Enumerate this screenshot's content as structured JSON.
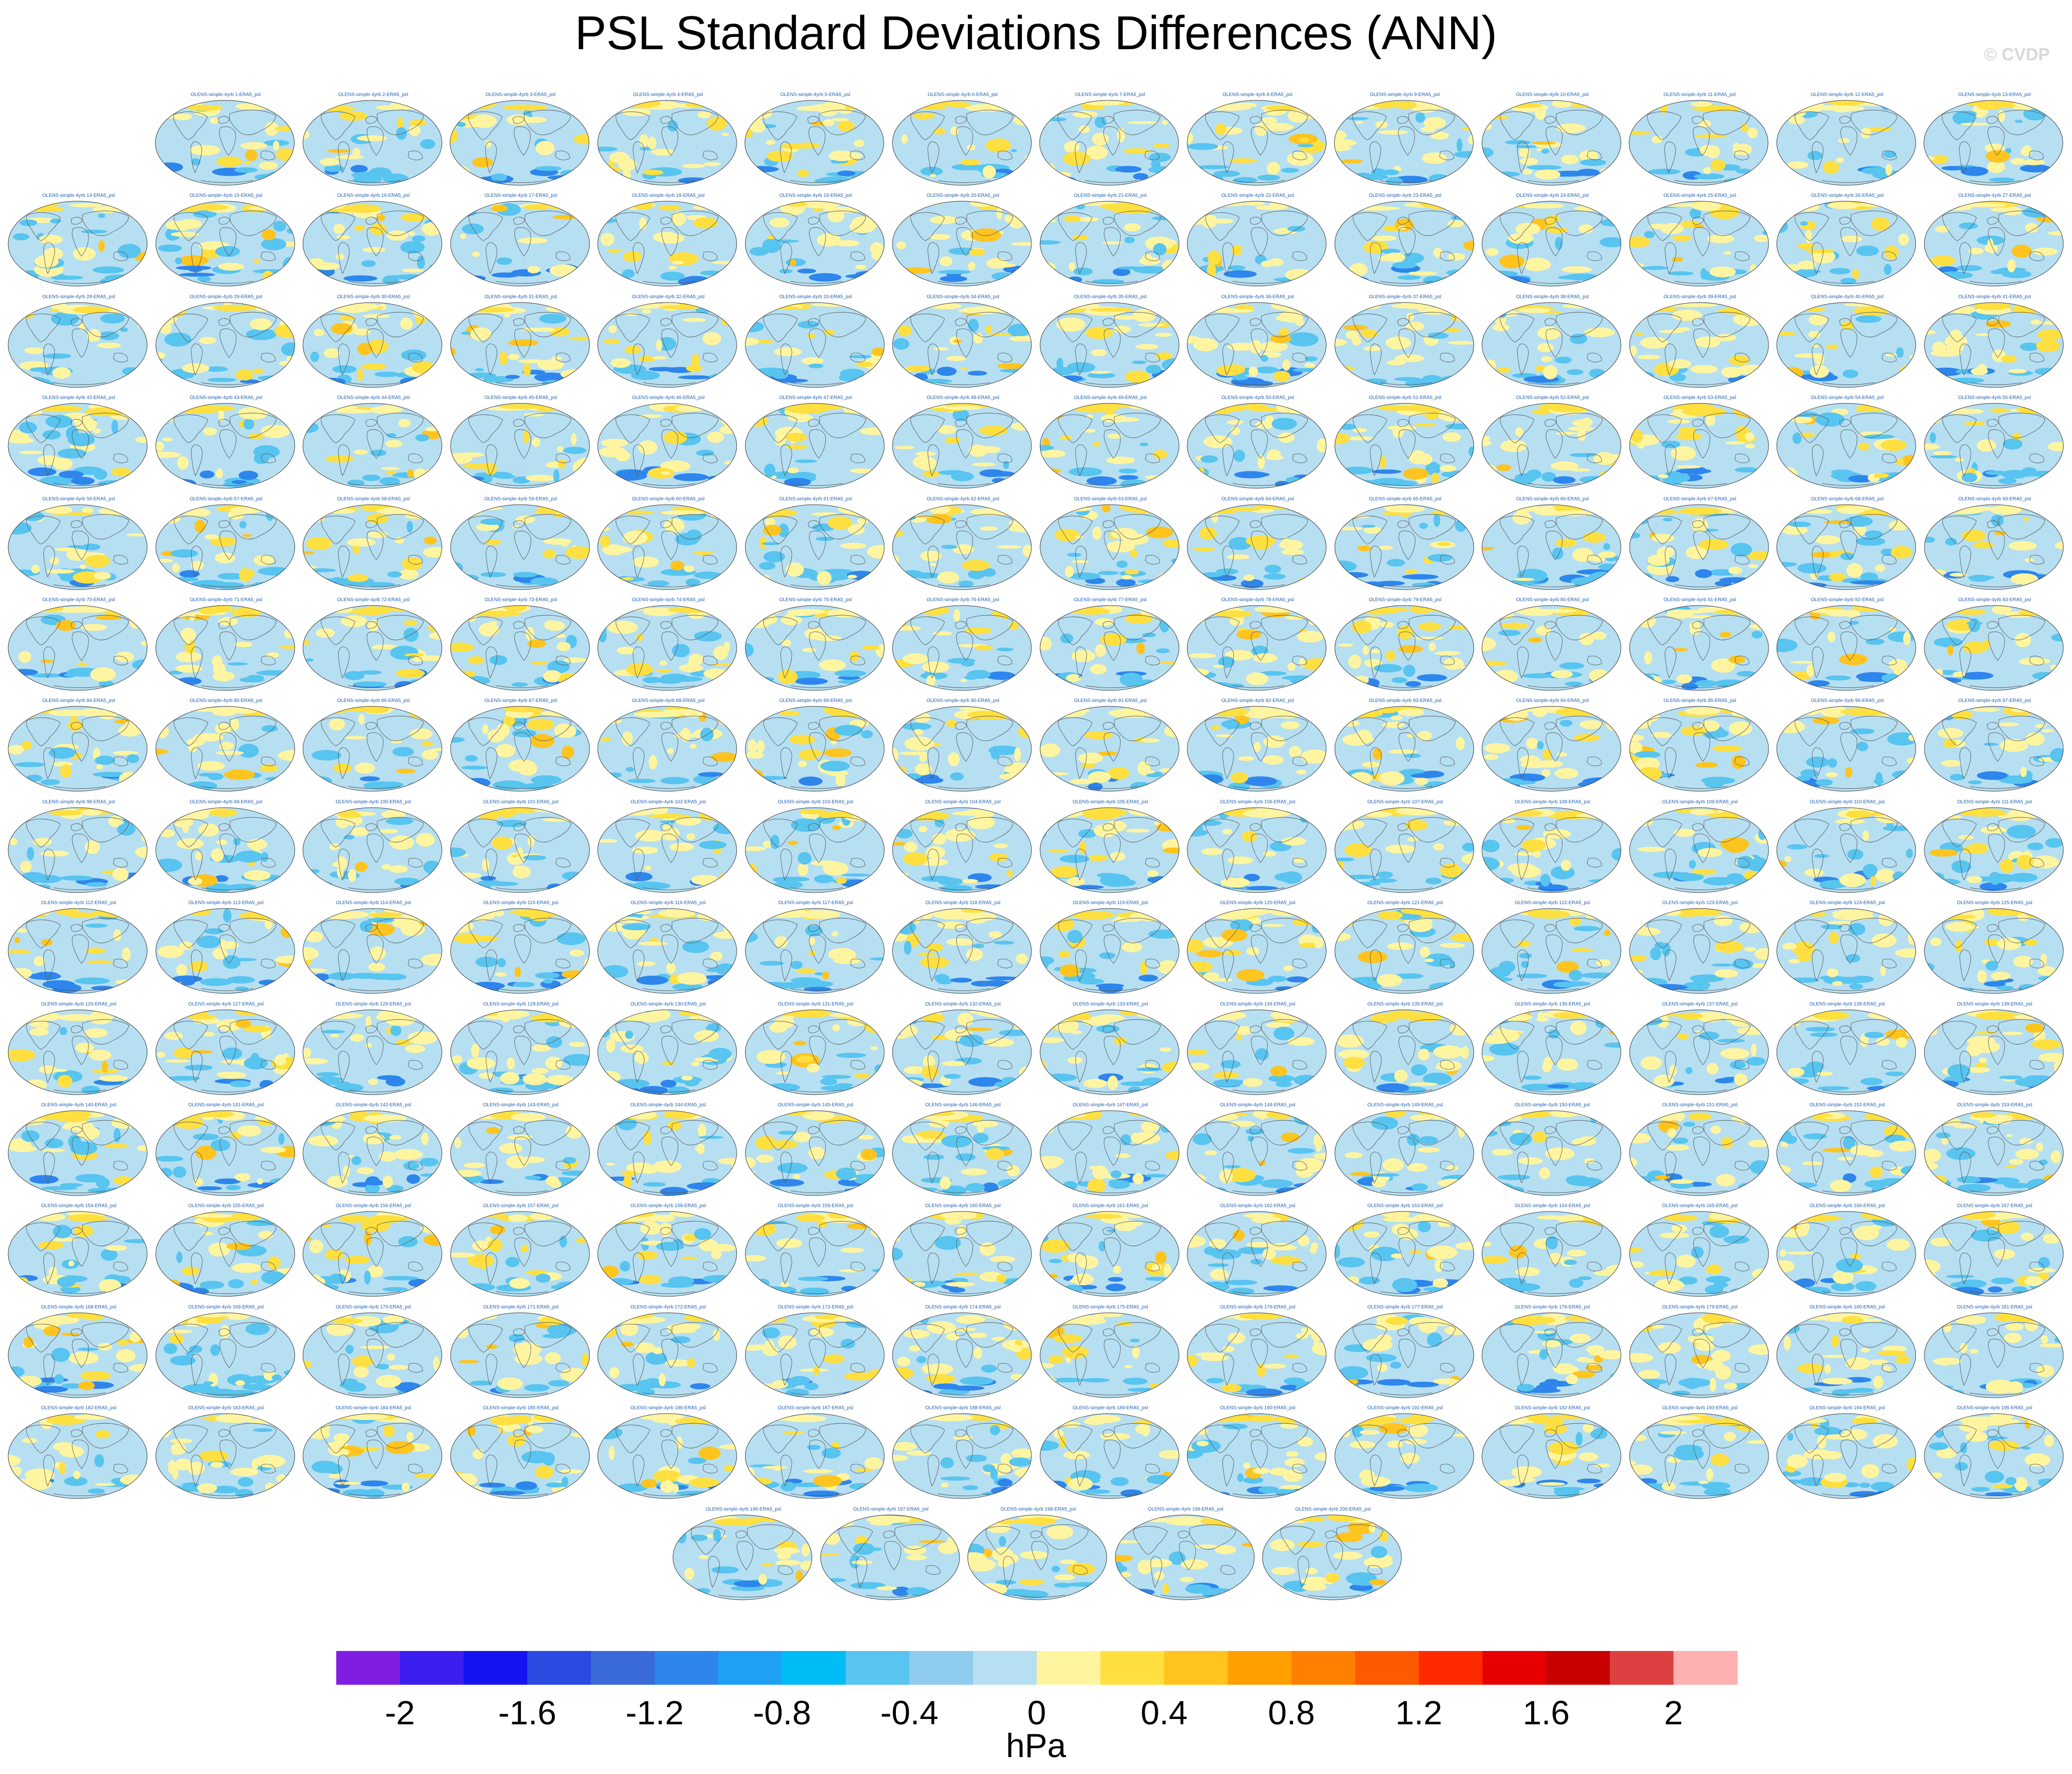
{
  "title": "PSL Standard Deviations Differences (ANN)",
  "credit": "© CVDP",
  "panel_title_prefix": "OLENS-simple-4yrb ",
  "panel_title_suffix": "-ERA5_psl",
  "panel_count": 200,
  "grid_rows": [
    13,
    14,
    14,
    14,
    14,
    14,
    14,
    14,
    14,
    14,
    14,
    14,
    14,
    14,
    5
  ],
  "colorbar": {
    "units": "hPa",
    "colors": [
      "#7f1ee0",
      "#3d1ef0",
      "#1414f0",
      "#2a4ae0",
      "#3a6ad8",
      "#2e86ec",
      "#1ea0f5",
      "#00bcf5",
      "#58c4f0",
      "#8ecbec",
      "#b6dff2",
      "#fff5a0",
      "#ffe040",
      "#ffc41e",
      "#ffa000",
      "#ff8000",
      "#ff5a00",
      "#ff2a00",
      "#e60000",
      "#c80000",
      "#dc4040",
      "#ffb0b0"
    ],
    "tick_labels": [
      "-2",
      "-1.6",
      "-1.2",
      "-0.8",
      "-0.4",
      "0",
      "0.4",
      "0.8",
      "1.2",
      "1.6",
      "2"
    ]
  },
  "map_colors": {
    "ocean_base": "#b6dff2",
    "negative_mid": "#58c4f0",
    "negative_strong": "#2e86ec",
    "positive_weak": "#fff5a0",
    "positive_mid": "#ffe040",
    "positive_strong": "#ffc41e",
    "outline": "#555555"
  }
}
